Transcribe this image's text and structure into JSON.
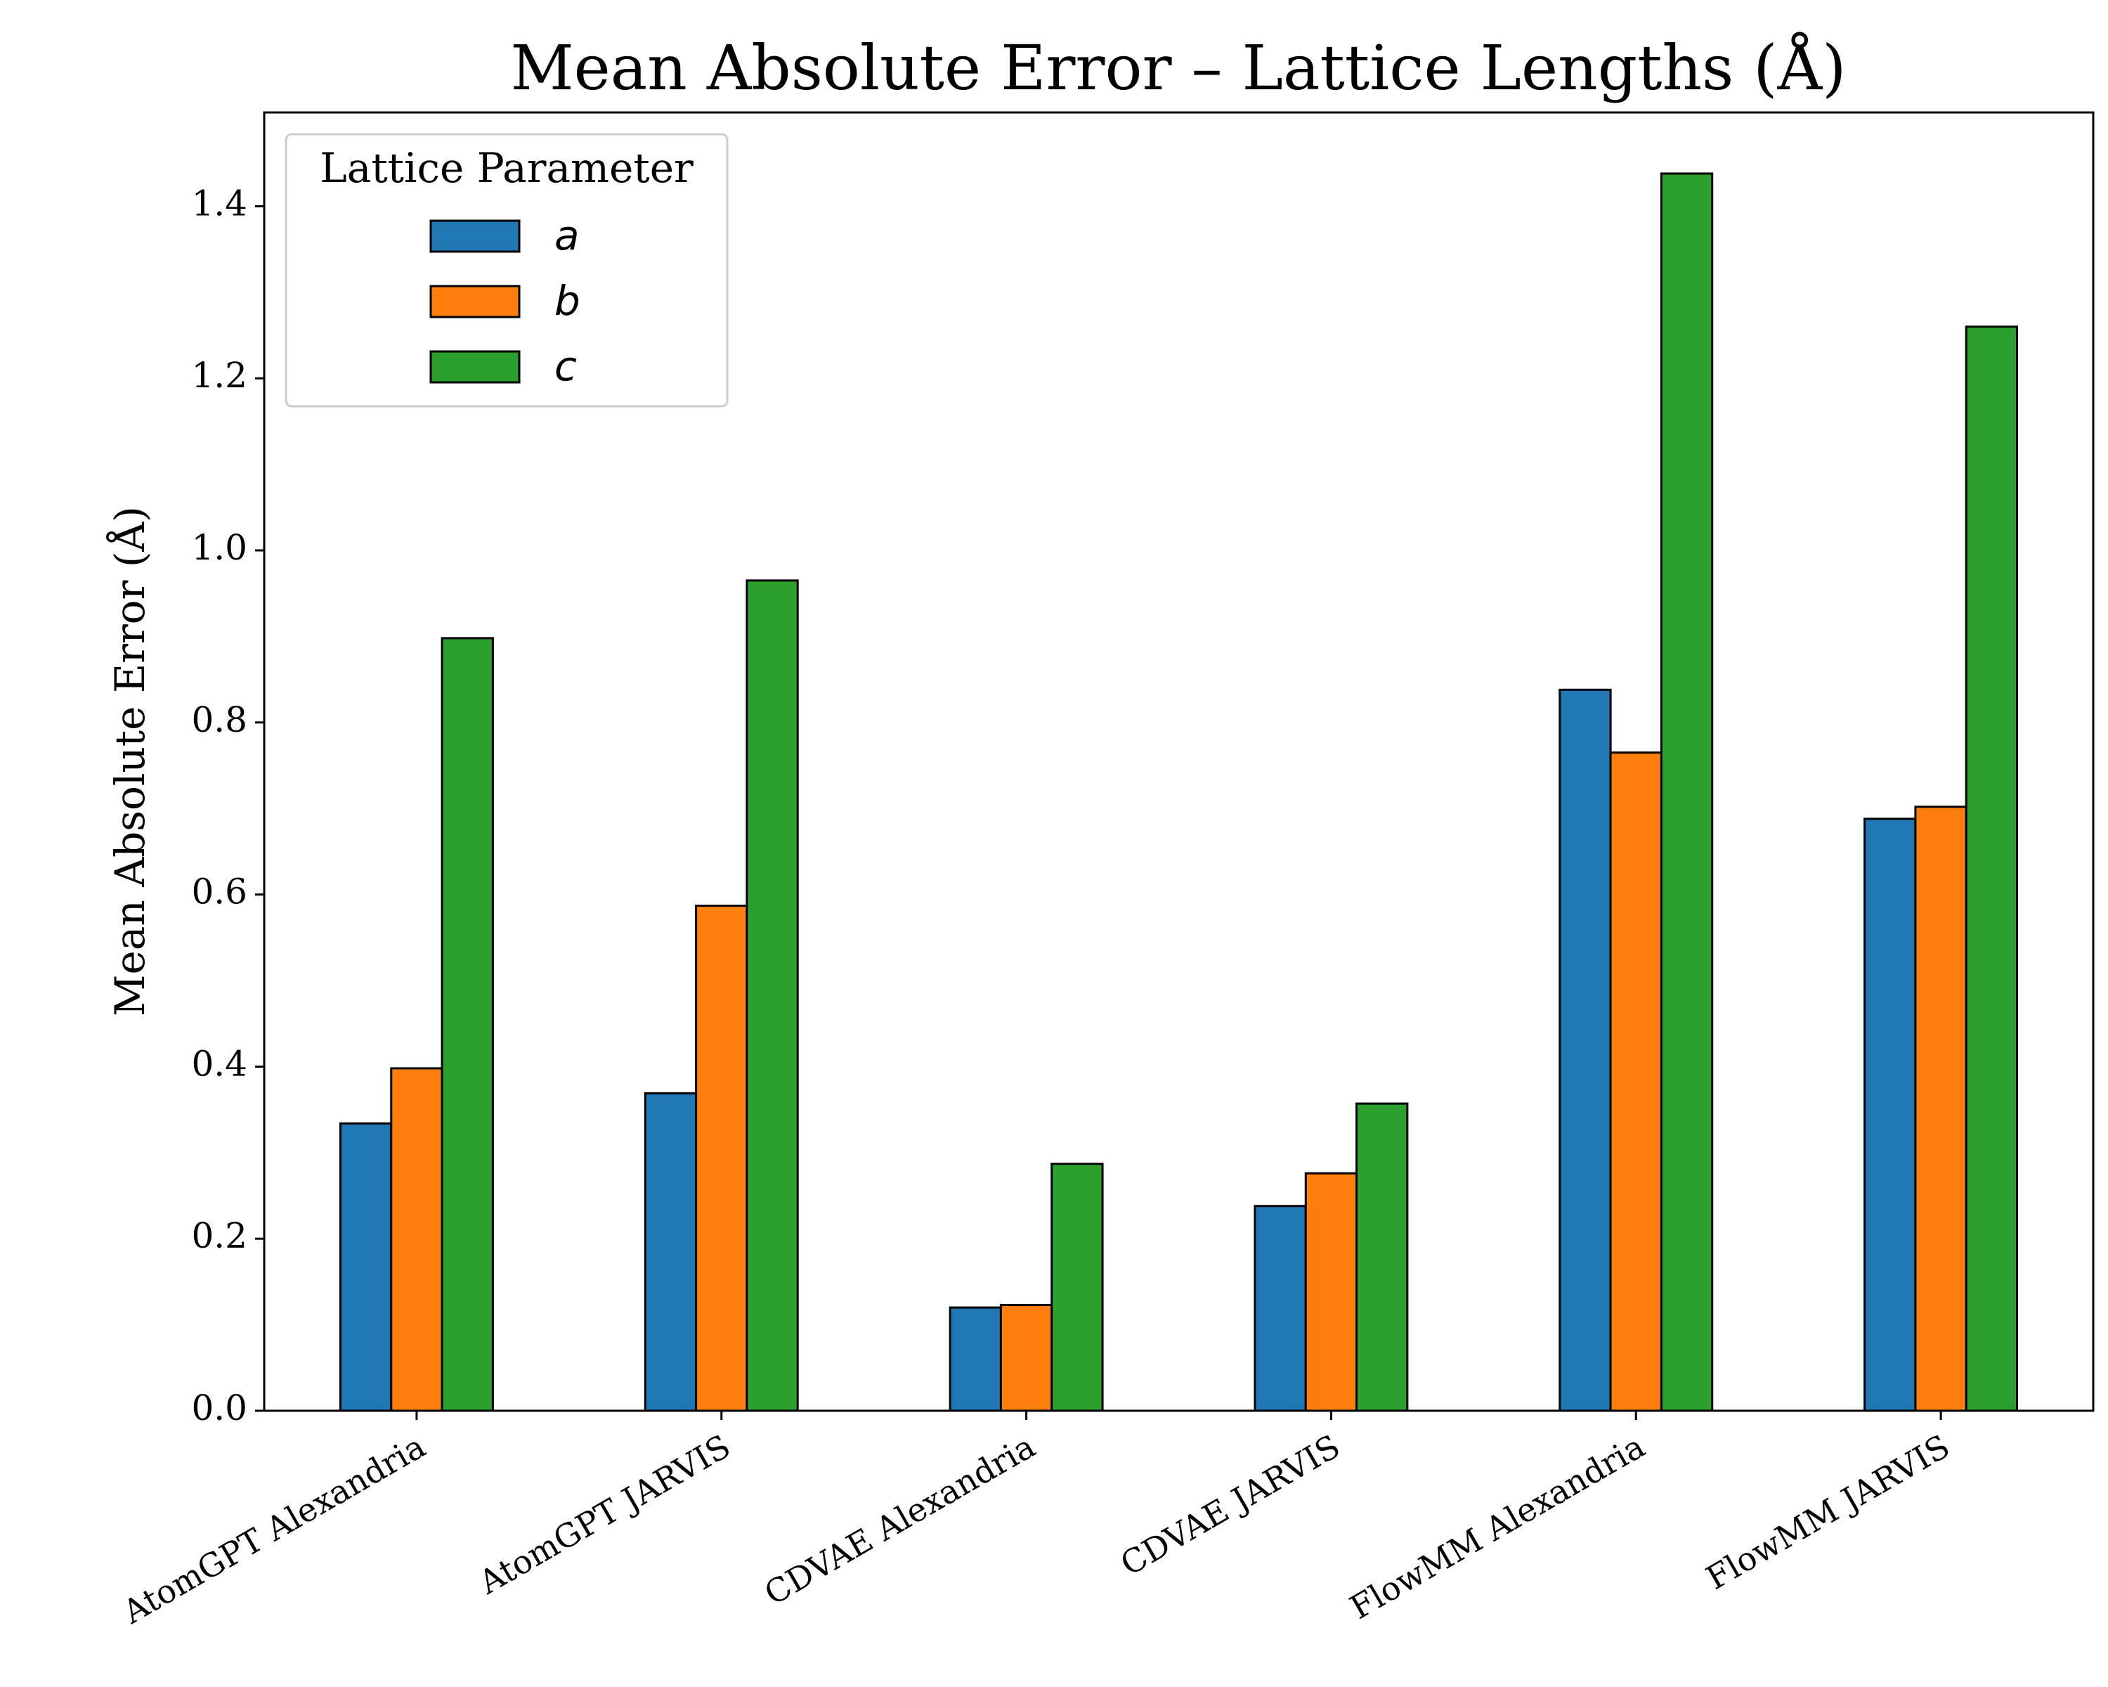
{
  "chart_data": {
    "type": "bar",
    "title": "Mean Absolute Error – Lattice Lengths (Å)",
    "ylabel": "Mean Absolute Error (Å)",
    "categories": [
      "AtomGPT Alexandria",
      "AtomGPT JARVIS",
      "CDVAE Alexandria",
      "CDVAE JARVIS",
      "FlowMM Alexandria",
      "FlowMM JARVIS"
    ],
    "series": [
      {
        "name": "a",
        "color": "#1f77b4",
        "values": [
          0.334,
          0.369,
          0.12,
          0.238,
          0.838,
          0.688
        ]
      },
      {
        "name": "b",
        "color": "#ff7f0e",
        "values": [
          0.398,
          0.587,
          0.123,
          0.276,
          0.765,
          0.702
        ]
      },
      {
        "name": "c",
        "color": "#2ca02c",
        "values": [
          0.898,
          0.965,
          0.287,
          0.357,
          1.438,
          1.26
        ]
      }
    ],
    "legend_title": "Lattice Parameter",
    "legend_loc": "upper left",
    "ylim": [
      0,
      1.509
    ],
    "yticks": [
      {
        "value": 0,
        "label": "0.0"
      },
      0.2,
      0.4,
      0.6,
      0.8,
      {
        "value": 1,
        "label": "1.0"
      },
      1.2,
      1.4
    ],
    "grid": false
  }
}
